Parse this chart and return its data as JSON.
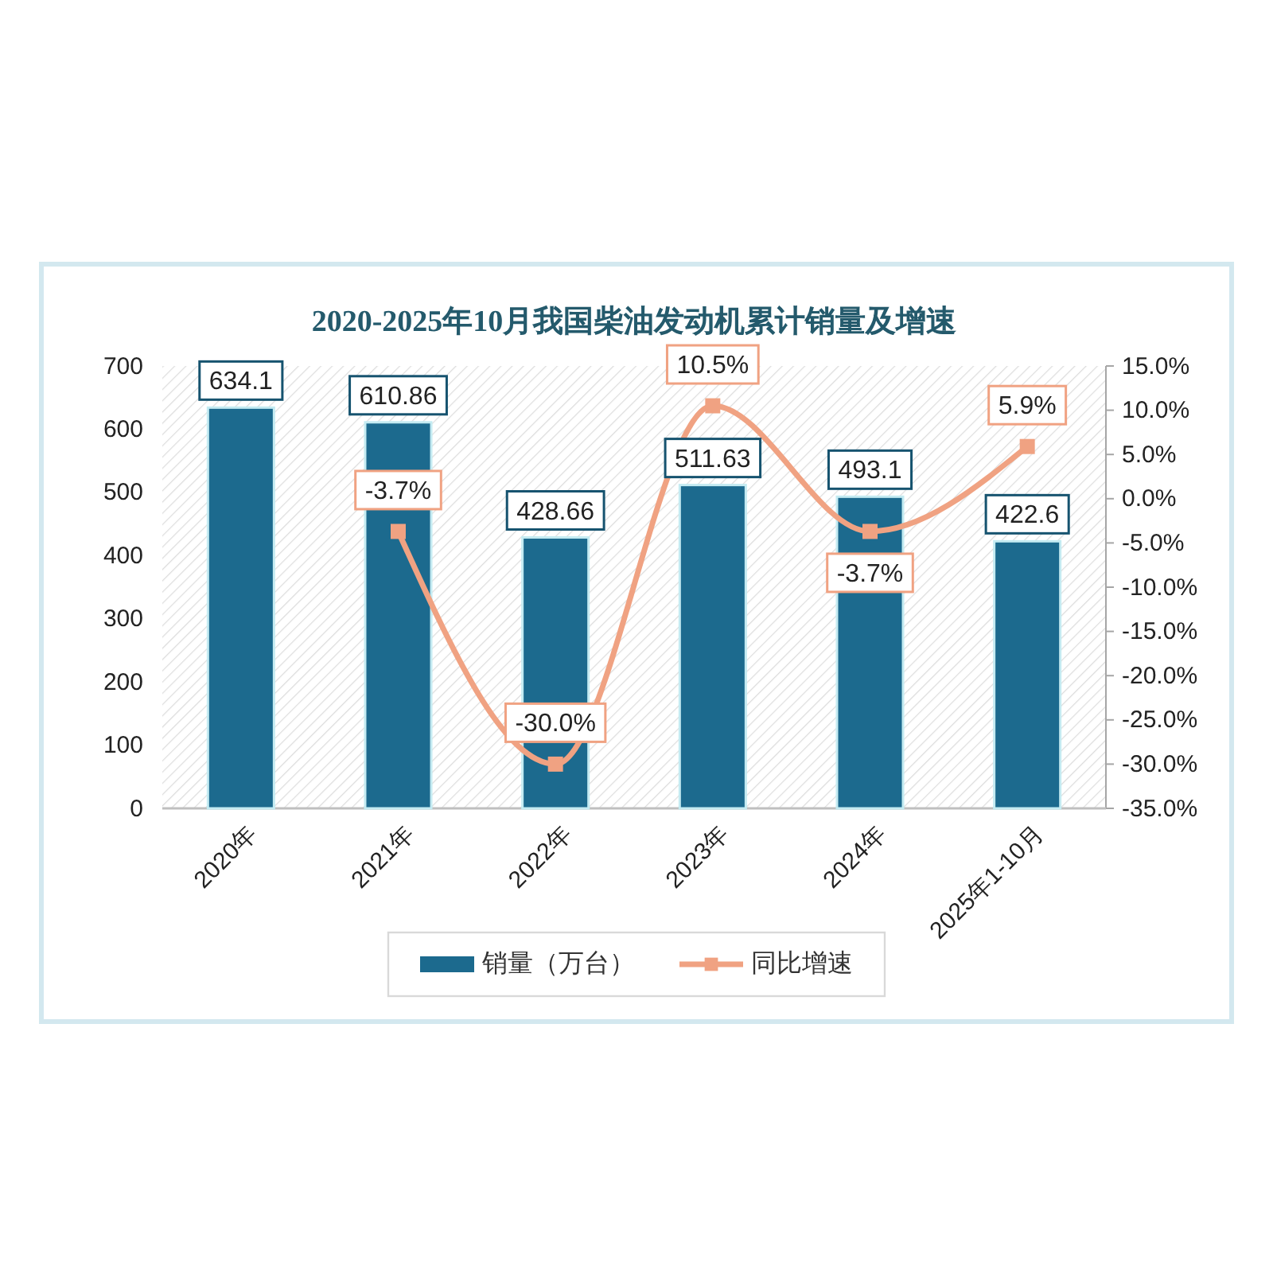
{
  "chart_data": {
    "type": "bar",
    "title": "2020-2025年10月我国柴油发动机累计销量及增速",
    "categories": [
      "2020年",
      "2021年",
      "2022年",
      "2023年",
      "2024年",
      "2025年1-10月"
    ],
    "series": [
      {
        "name": "销量（万台）",
        "color": "#1c6a8e",
        "values": [
          634.1,
          610.86,
          428.66,
          511.63,
          493.1,
          422.6
        ],
        "value_labels": [
          "634.1",
          "610.86",
          "428.66",
          "511.63",
          "493.1",
          "422.6"
        ]
      },
      {
        "name": "同比增速",
        "type": "line",
        "axis": "y2",
        "color": "#f0a282",
        "values": [
          null,
          -3.7,
          -30.0,
          10.5,
          -3.7,
          5.9
        ],
        "value_labels": [
          null,
          "-3.7%",
          "-30.0%",
          "10.5%",
          "-3.7%",
          "5.9%"
        ]
      }
    ],
    "ylim": [
      0,
      700
    ],
    "yticks": [
      0,
      100,
      200,
      300,
      400,
      500,
      600,
      700
    ],
    "y2lim": [
      -35,
      15
    ],
    "y2ticks": [
      {
        "value": -35,
        "label": "-35.0%"
      },
      {
        "value": -30,
        "label": "-30.0%"
      },
      {
        "value": -25,
        "label": "-25.0%"
      },
      {
        "value": -20,
        "label": "-20.0%"
      },
      {
        "value": -15,
        "label": "-15.0%"
      },
      {
        "value": -10,
        "label": "-10.0%"
      },
      {
        "value": -5,
        "label": "-5.0%"
      },
      {
        "value": 0,
        "label": "0.0%"
      },
      {
        "value": 5,
        "label": "5.0%"
      },
      {
        "value": 10,
        "label": "10.0%"
      },
      {
        "value": 15,
        "label": "15.0%"
      }
    ],
    "legend": "bottom",
    "marker": "square"
  }
}
